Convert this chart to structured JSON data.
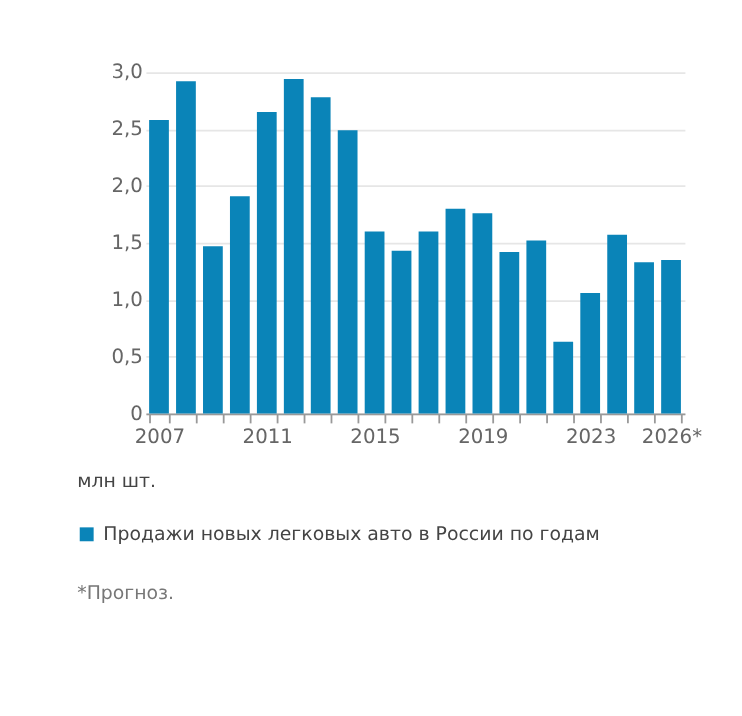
{
  "chart_data": {
    "type": "bar",
    "categories": [
      "2007",
      null,
      null,
      null,
      "2011",
      null,
      null,
      null,
      "2015",
      null,
      null,
      null,
      "2019",
      null,
      null,
      null,
      "2023",
      null,
      null,
      "2026*"
    ],
    "series": [
      {
        "name": "Продажи новых легковых авто в России по годам",
        "color": "#0a84b8",
        "values": [
          2.58,
          2.92,
          1.47,
          1.91,
          2.65,
          2.94,
          2.78,
          2.49,
          1.6,
          1.43,
          1.6,
          1.8,
          1.76,
          1.42,
          1.52,
          0.63,
          1.06,
          1.57,
          1.33,
          1.35
        ]
      }
    ],
    "ylim": [
      0,
      3.0
    ],
    "yticks": [
      0,
      {
        "value": 0.5,
        "label": "0,5"
      },
      {
        "value": 1.0,
        "label": "1,0"
      },
      {
        "value": 1.5,
        "label": "1,5"
      },
      {
        "value": 2.0,
        "label": "2,0"
      },
      {
        "value": 2.5,
        "label": "2,5"
      },
      {
        "value": 3.0,
        "label": "3,0"
      }
    ],
    "ylabel": "млн шт.",
    "grid": "y",
    "legend": "bottom",
    "annotations": [
      "*Прогноз."
    ]
  }
}
